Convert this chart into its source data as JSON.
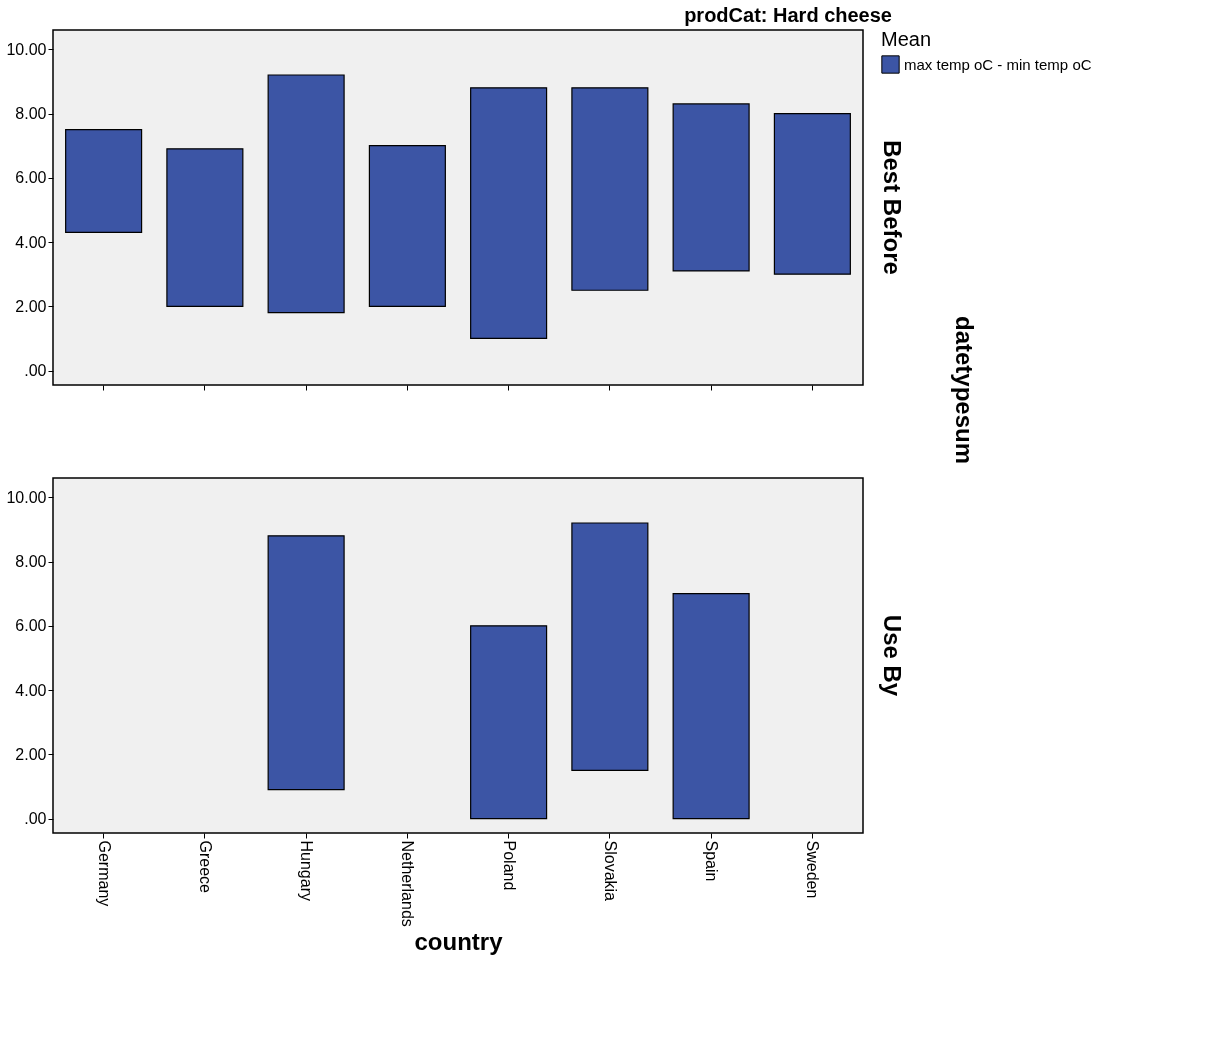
{
  "chart_data": [
    {
      "type": "bar",
      "title": "prodCat: Hard cheese",
      "y2label": "Best Before",
      "legend_title": "Mean",
      "legend": "right",
      "grid": false,
      "tick_labels": "y",
      "annotations": [
        "datetypesum"
      ],
      "categories": [
        null,
        null,
        null,
        null,
        null,
        null,
        null,
        null
      ],
      "series": [
        {
          "name": "max temp oC - min temp oC",
          "color": "#3c55a5",
          "base": [
            4.3,
            2.0,
            1.8,
            2.0,
            1.0,
            2.5,
            3.1,
            3.0
          ],
          "values": [
            3.2,
            4.9,
            7.4,
            5.0,
            7.8,
            6.3,
            5.2,
            5.0
          ]
        }
      ],
      "ylim": [
        -0.45,
        10.6
      ],
      "yticks": [
        {
          "value": 0,
          "label": ".00"
        },
        {
          "value": 2,
          "label": "2.00"
        },
        {
          "value": 4,
          "label": "4.00"
        },
        {
          "value": 6,
          "label": "6.00"
        },
        {
          "value": 8,
          "label": "8.00"
        },
        {
          "value": 10,
          "label": "10.00"
        }
      ]
    },
    {
      "type": "bar",
      "y2label": "Use By",
      "xlabel": "country",
      "grid": false,
      "categories": [
        "Germany",
        "Greece",
        "Hungary",
        "Netherlands",
        "Poland",
        "Slovakia",
        "Spain",
        "Sweden"
      ],
      "series": [
        {
          "color": "#3c55a5",
          "base": [
            null,
            null,
            0.9,
            null,
            0.0,
            1.5,
            0.0,
            null
          ],
          "values": [
            null,
            null,
            7.9,
            null,
            6.0,
            7.7,
            7.0,
            null
          ]
        }
      ],
      "ylim": [
        -0.45,
        10.6
      ],
      "yticks": [
        {
          "value": 0,
          "label": ".00"
        },
        {
          "value": 2,
          "label": "2.00"
        },
        {
          "value": 4,
          "label": "4.00"
        },
        {
          "value": 6,
          "label": "6.00"
        },
        {
          "value": 8,
          "label": "8.00"
        },
        {
          "value": 10,
          "label": "10.00"
        }
      ]
    }
  ]
}
